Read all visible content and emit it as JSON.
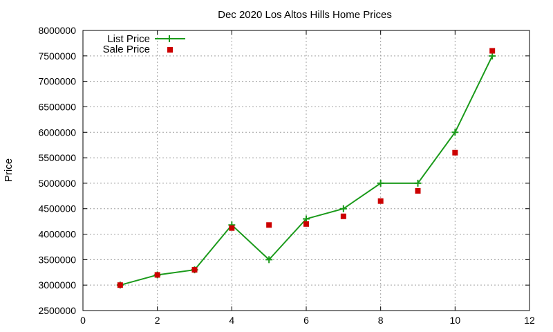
{
  "chart_data": {
    "type": "line",
    "title": "Dec 2020 Los Altos Hills Home Prices",
    "xlabel": "",
    "ylabel": "Price",
    "xlim": [
      0,
      12
    ],
    "ylim": [
      2500000,
      8000000
    ],
    "xticks": [
      0,
      2,
      4,
      6,
      8,
      10,
      12
    ],
    "yticks": [
      2500000,
      3000000,
      3500000,
      4000000,
      4500000,
      5000000,
      5500000,
      6000000,
      6500000,
      7000000,
      7500000,
      8000000
    ],
    "grid": true,
    "legend_position": "top-left",
    "series": [
      {
        "name": "List Price",
        "style": "line-with-plus-markers",
        "color": "#1a9a1a",
        "x": [
          1,
          2,
          3,
          4,
          5,
          6,
          7,
          8,
          9,
          10,
          11
        ],
        "y": [
          3000000,
          3200000,
          3300000,
          4180000,
          3500000,
          4300000,
          4500000,
          5000000,
          5000000,
          6000000,
          7500000
        ]
      },
      {
        "name": "Sale Price",
        "style": "square-markers",
        "color": "#cc0000",
        "x": [
          1,
          2,
          3,
          4,
          5,
          6,
          7,
          8,
          9,
          10,
          11
        ],
        "y": [
          3000000,
          3200000,
          3300000,
          4120000,
          4180000,
          4200000,
          4350000,
          4650000,
          4850000,
          5600000,
          7600000
        ]
      }
    ]
  }
}
